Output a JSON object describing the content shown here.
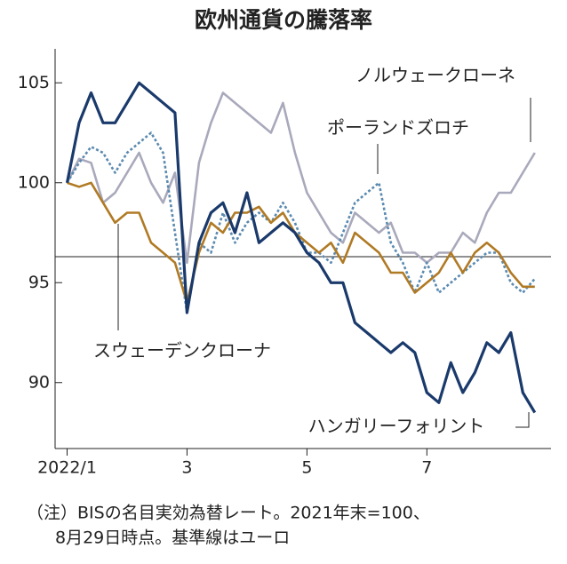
{
  "chart_data": {
    "type": "line",
    "title": "欧州通貨の騰落率",
    "x": [
      1.0,
      1.2,
      1.4,
      1.6,
      1.8,
      2.0,
      2.2,
      2.4,
      2.6,
      2.8,
      3.0,
      3.2,
      3.4,
      3.6,
      3.8,
      4.0,
      4.2,
      4.4,
      4.6,
      4.8,
      5.0,
      5.2,
      5.4,
      5.6,
      5.8,
      6.0,
      6.2,
      6.4,
      6.6,
      6.8,
      7.0,
      7.2,
      7.4,
      7.6,
      7.8,
      8.0,
      8.2,
      8.4,
      8.6,
      8.8
    ],
    "xlim": [
      0.8,
      9.07
    ],
    "xticks": [
      {
        "value": 1,
        "label": "2022/1"
      },
      3,
      5,
      7
    ],
    "ylim": [
      86.7,
      106.7
    ],
    "yticks": [
      90,
      95,
      100,
      105
    ],
    "reference_line": 96.3,
    "series": [
      {
        "name": "ノルウェークローネ",
        "color": "#a9a9bc",
        "dashed": false,
        "values": [
          100,
          101.2,
          101,
          99,
          99.5,
          100.5,
          101.5,
          100,
          99,
          100.5,
          96,
          101,
          103,
          104.5,
          104,
          103.5,
          103,
          102.5,
          104,
          101.5,
          99.5,
          98.5,
          97.5,
          97,
          98.5,
          98,
          97.5,
          98,
          96.5,
          96.5,
          96,
          96.5,
          96.5,
          97.5,
          97,
          98.5,
          99.5,
          99.5,
          100.5,
          101.5
        ]
      },
      {
        "name": "ポーランドズロチ",
        "color": "#5b8ab0",
        "dashed": true,
        "values": [
          100,
          101,
          101.8,
          101.5,
          100.5,
          101.5,
          102,
          102.5,
          101.5,
          97.5,
          93.5,
          97,
          96.5,
          98.5,
          97,
          98,
          98.5,
          98,
          99,
          98,
          96.5,
          96.5,
          96,
          97.5,
          99,
          99.5,
          100,
          97,
          96,
          94.5,
          96,
          94.5,
          95,
          95.5,
          96,
          96.5,
          96.5,
          95,
          94.5,
          95.2
        ]
      },
      {
        "name": "スウェーデンクローナ",
        "color": "#b07a24",
        "dashed": false,
        "values": [
          100,
          99.8,
          100,
          99,
          98,
          98.5,
          98.5,
          97,
          96.5,
          96,
          94,
          96.5,
          98,
          97.5,
          98.5,
          98.5,
          98.8,
          98,
          98.5,
          97.5,
          97,
          96.5,
          97,
          96,
          97.5,
          97,
          96.5,
          95.5,
          95.5,
          94.5,
          95,
          95.5,
          96.5,
          95.5,
          96.5,
          97,
          96.5,
          95.5,
          94.8,
          94.8
        ]
      },
      {
        "name": "ハンガリーフォリント",
        "color": "#1a3a6b",
        "dashed": false,
        "values": [
          100,
          103,
          104.5,
          103,
          103,
          104,
          105,
          104.5,
          104,
          103.5,
          93.5,
          97,
          98.5,
          99,
          97.5,
          99.5,
          97,
          97.5,
          98,
          97.5,
          96.5,
          96,
          95,
          95,
          93,
          92.5,
          92,
          91.5,
          92,
          91.5,
          89.5,
          89,
          91,
          89.5,
          90.5,
          92,
          91.5,
          92.5,
          89.5,
          88.5
        ]
      }
    ],
    "note": [
      "（注）BISの名目実効為替レート。2021年末=100、",
      "8月29日時点。基準線はユーロ"
    ]
  }
}
